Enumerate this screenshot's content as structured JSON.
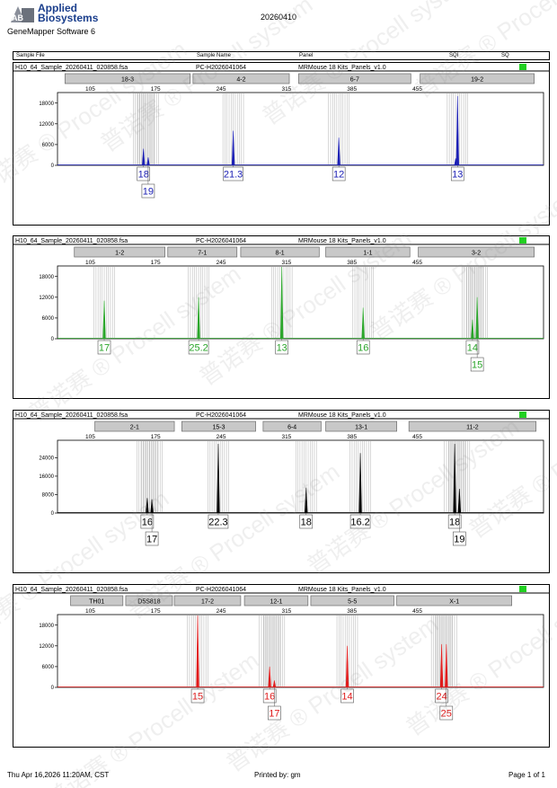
{
  "header": {
    "logo_line1": "Applied",
    "logo_line2": "Biosystems",
    "logo_mark": "AB",
    "software": "GeneMapper Software 6",
    "date": "20260410",
    "columns": [
      "Sample File",
      "Sample Name",
      "Panel",
      "SQI",
      "SQ"
    ]
  },
  "footer": {
    "printed_at": "Thu Apr 16,2026 11:20AM, CST",
    "printed_by": "Printed by: gm",
    "page": "Page 1 of 1"
  },
  "watermark": "普诺赛 ® Procell system",
  "colors": {
    "blue": "#1c20b4",
    "green": "#2aa52a",
    "black": "#000000",
    "red": "#e01b1b",
    "bin": "#b8b8b8",
    "marker": "#c8c8c8",
    "status": "#22d022"
  },
  "chart_data": [
    {
      "type": "line",
      "sample_file": "H10_64_Sample_20260411_020858.fsa",
      "sample_name": "PC-H2026041064",
      "panel": "MRMouse 18 Kits_Panels_v1.0",
      "color": "blue",
      "x_ticks": [
        "105",
        "175",
        "245",
        "315",
        "385",
        "455"
      ],
      "y_ticks": [
        "0",
        "6000",
        "12000",
        "18000"
      ],
      "ylim": [
        0,
        20000
      ],
      "markers": [
        {
          "name": "18-3",
          "start": 78,
          "end": 212
        },
        {
          "name": "4-2",
          "start": 215,
          "end": 318
        },
        {
          "name": "6-7",
          "start": 328,
          "end": 448
        },
        {
          "name": "19-2",
          "start": 458,
          "end": 580
        }
      ],
      "peaks": [
        {
          "x": 162,
          "h": 4800
        },
        {
          "x": 167,
          "h": 2300
        },
        {
          "x": 258,
          "h": 10000
        },
        {
          "x": 371,
          "h": 8000
        },
        {
          "x": 496,
          "h": 2000
        },
        {
          "x": 498,
          "h": 20000
        }
      ],
      "alleles": [
        {
          "label": "18",
          "x": 162,
          "row": 0
        },
        {
          "label": "19",
          "x": 167,
          "row": 1
        },
        {
          "label": "21.3",
          "x": 258,
          "row": 0
        },
        {
          "label": "12",
          "x": 371,
          "row": 0
        },
        {
          "label": "13",
          "x": 498,
          "row": 0
        }
      ]
    },
    {
      "type": "line",
      "sample_file": "H10_64_Sample_20260411_020858.fsa",
      "sample_name": "PC-H2026041064",
      "panel": "MRMouse 18 Kits_Panels_v1.0",
      "color": "green",
      "x_ticks": [
        "105",
        "175",
        "245",
        "315",
        "385",
        "455"
      ],
      "y_ticks": [
        "0",
        "6000",
        "12000",
        "18000"
      ],
      "ylim": [
        0,
        20000
      ],
      "markers": [
        {
          "name": "1-2",
          "start": 88,
          "end": 185
        },
        {
          "name": "7-1",
          "start": 188,
          "end": 262
        },
        {
          "name": "8-1",
          "start": 266,
          "end": 350
        },
        {
          "name": "1-1",
          "start": 357,
          "end": 447
        },
        {
          "name": "3-2",
          "start": 456,
          "end": 580
        }
      ],
      "peaks": [
        {
          "x": 120,
          "h": 11000
        },
        {
          "x": 221,
          "h": 12000
        },
        {
          "x": 310,
          "h": 22000
        },
        {
          "x": 397,
          "h": 9000
        },
        {
          "x": 514,
          "h": 5500
        },
        {
          "x": 519,
          "h": 12000
        }
      ],
      "alleles": [
        {
          "label": "17",
          "x": 120,
          "row": 0
        },
        {
          "label": "25.2",
          "x": 221,
          "row": 0
        },
        {
          "label": "13",
          "x": 310,
          "row": 0
        },
        {
          "label": "16",
          "x": 397,
          "row": 0
        },
        {
          "label": "14",
          "x": 514,
          "row": 0
        },
        {
          "label": "15",
          "x": 519,
          "row": 1
        }
      ]
    },
    {
      "type": "line",
      "sample_file": "H10_64_Sample_20260411_020858.fsa",
      "sample_name": "PC-H2026041064",
      "panel": "MRMouse 18 Kits_Panels_v1.0",
      "color": "black",
      "x_ticks": [
        "105",
        "175",
        "245",
        "315",
        "385",
        "455"
      ],
      "y_ticks": [
        "0",
        "8000",
        "16000",
        "24000"
      ],
      "ylim": [
        0,
        30000
      ],
      "markers": [
        {
          "name": "2-1",
          "start": 110,
          "end": 195
        },
        {
          "name": "15-3",
          "start": 203,
          "end": 282
        },
        {
          "name": "6-4",
          "start": 290,
          "end": 352
        },
        {
          "name": "13-1",
          "start": 357,
          "end": 433
        },
        {
          "name": "11-2",
          "start": 446,
          "end": 582
        }
      ],
      "peaks": [
        {
          "x": 166,
          "h": 6500
        },
        {
          "x": 171,
          "h": 6000
        },
        {
          "x": 242,
          "h": 30000
        },
        {
          "x": 336,
          "h": 11000
        },
        {
          "x": 394,
          "h": 26000
        },
        {
          "x": 495,
          "h": 30000
        },
        {
          "x": 500,
          "h": 10500
        }
      ],
      "alleles": [
        {
          "label": "16",
          "x": 166,
          "row": 0
        },
        {
          "label": "17",
          "x": 171,
          "row": 1
        },
        {
          "label": "22.3",
          "x": 242,
          "row": 0
        },
        {
          "label": "18",
          "x": 336,
          "row": 0
        },
        {
          "label": "16.2",
          "x": 394,
          "row": 0
        },
        {
          "label": "18",
          "x": 495,
          "row": 0
        },
        {
          "label": "19",
          "x": 500,
          "row": 1
        }
      ]
    },
    {
      "type": "line",
      "sample_file": "H10_64_Sample_20260411_020858.fsa",
      "sample_name": "PC-H2026041064",
      "panel": "MRMouse 18 Kits_Panels_v1.0",
      "color": "red",
      "x_ticks": [
        "105",
        "175",
        "245",
        "315",
        "385",
        "455"
      ],
      "y_ticks": [
        "0",
        "6000",
        "12000",
        "18000"
      ],
      "ylim": [
        0,
        20000
      ],
      "markers": [
        {
          "name": "TH01",
          "start": 84,
          "end": 140
        },
        {
          "name": "D5S818",
          "start": 143,
          "end": 193
        },
        {
          "name": "17-2",
          "start": 195,
          "end": 266
        },
        {
          "name": "12-1",
          "start": 270,
          "end": 338
        },
        {
          "name": "5-5",
          "start": 341,
          "end": 430
        },
        {
          "name": "X-1",
          "start": 433,
          "end": 556
        }
      ],
      "peaks": [
        {
          "x": 220,
          "h": 21000
        },
        {
          "x": 297,
          "h": 6000
        },
        {
          "x": 302,
          "h": 2000
        },
        {
          "x": 380,
          "h": 12000
        },
        {
          "x": 481,
          "h": 12500
        },
        {
          "x": 486,
          "h": 12500
        }
      ],
      "alleles": [
        {
          "label": "15",
          "x": 220,
          "row": 0
        },
        {
          "label": "16",
          "x": 297,
          "row": 0
        },
        {
          "label": "17",
          "x": 302,
          "row": 1
        },
        {
          "label": "14",
          "x": 380,
          "row": 0
        },
        {
          "label": "24",
          "x": 481,
          "row": 0
        },
        {
          "label": "25",
          "x": 486,
          "row": 1
        }
      ]
    }
  ]
}
